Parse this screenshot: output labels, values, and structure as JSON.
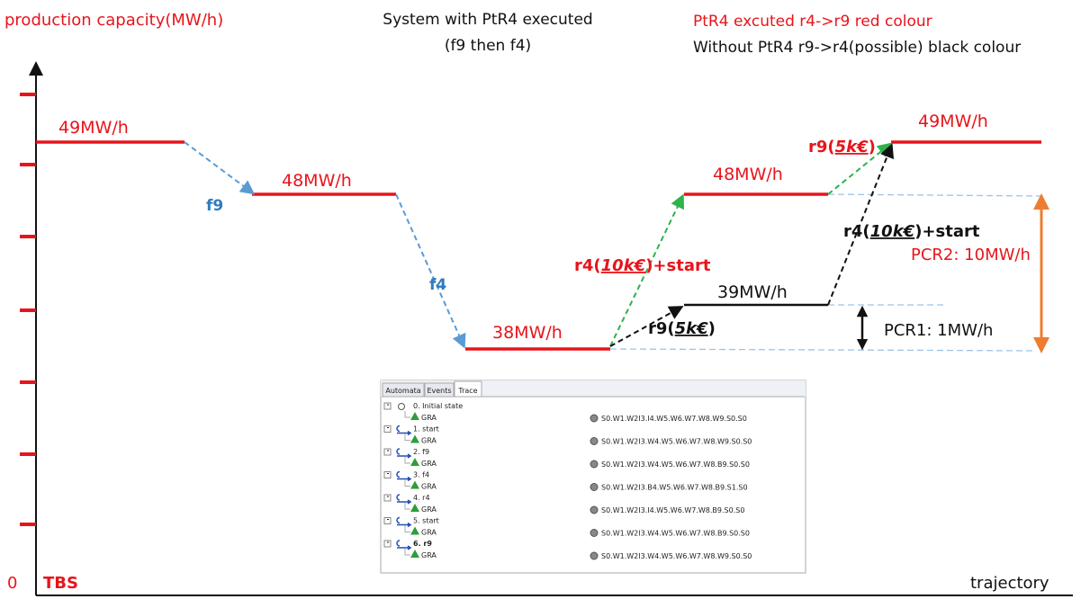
{
  "header": {
    "y_axis_label": "production capacity(MW/h)",
    "title": [
      "System with PtR4 executed",
      "(f9 then f4)"
    ],
    "legend": [
      "PtR4 excuted r4->r9 red colour",
      "Without PtR4 r9->r4(possible) black colour"
    ]
  },
  "levels": [
    "49MW/h",
    "48MW/h",
    "38MW/h",
    "48MW/h",
    "49MW/h",
    "39MW/h"
  ],
  "faults": [
    "f9",
    "f4"
  ],
  "repairs": {
    "red_r4": [
      "r4(",
      "10k€",
      ")+start"
    ],
    "red_r9": [
      "r9(",
      "5k€",
      ")"
    ],
    "black_r9": [
      "r9(",
      "5k€",
      ")"
    ],
    "black_r4": [
      "r4(",
      "10k€",
      ")+start"
    ]
  },
  "pcr": [
    "PCR2: 10MW/h",
    "PCR1: 1MW/h"
  ],
  "axis": {
    "origin": "0",
    "start": "TBS",
    "x_label": "trajectory"
  },
  "trace_panel": {
    "tabs": [
      "Automata",
      "Events",
      "Trace"
    ],
    "steps": [
      {
        "label": "0. Initial state",
        "model": "GRA",
        "state": "S0.W1.W2I3.I4.W5.W6.W7.W8.W9.S0.S0"
      },
      {
        "label": "1. start",
        "model": "GRA",
        "state": "S0.W1.W2I3.W4.W5.W6.W7.W8.W9.S0.S0"
      },
      {
        "label": "2. f9",
        "model": "GRA",
        "state": "S0.W1.W2I3.W4.W5.W6.W7.W8.B9.S0.S0"
      },
      {
        "label": "3. f4",
        "model": "GRA",
        "state": "S0.W1.W2I3.B4.W5.W6.W7.W8.B9.S1.S0"
      },
      {
        "label": "4. r4",
        "model": "GRA",
        "state": "S0.W1.W2I3.I4.W5.W6.W7.W8.B9.S0.S0"
      },
      {
        "label": "5. start",
        "model": "GRA",
        "state": "S0.W1.W2I3.W4.W5.W6.W7.W8.B9.S0.S0"
      },
      {
        "label": "6. r9",
        "model": "GRA",
        "state": "S0.W1.W2I3.W4.W5.W6.W7.W8.W9.S0.S0"
      }
    ]
  }
}
